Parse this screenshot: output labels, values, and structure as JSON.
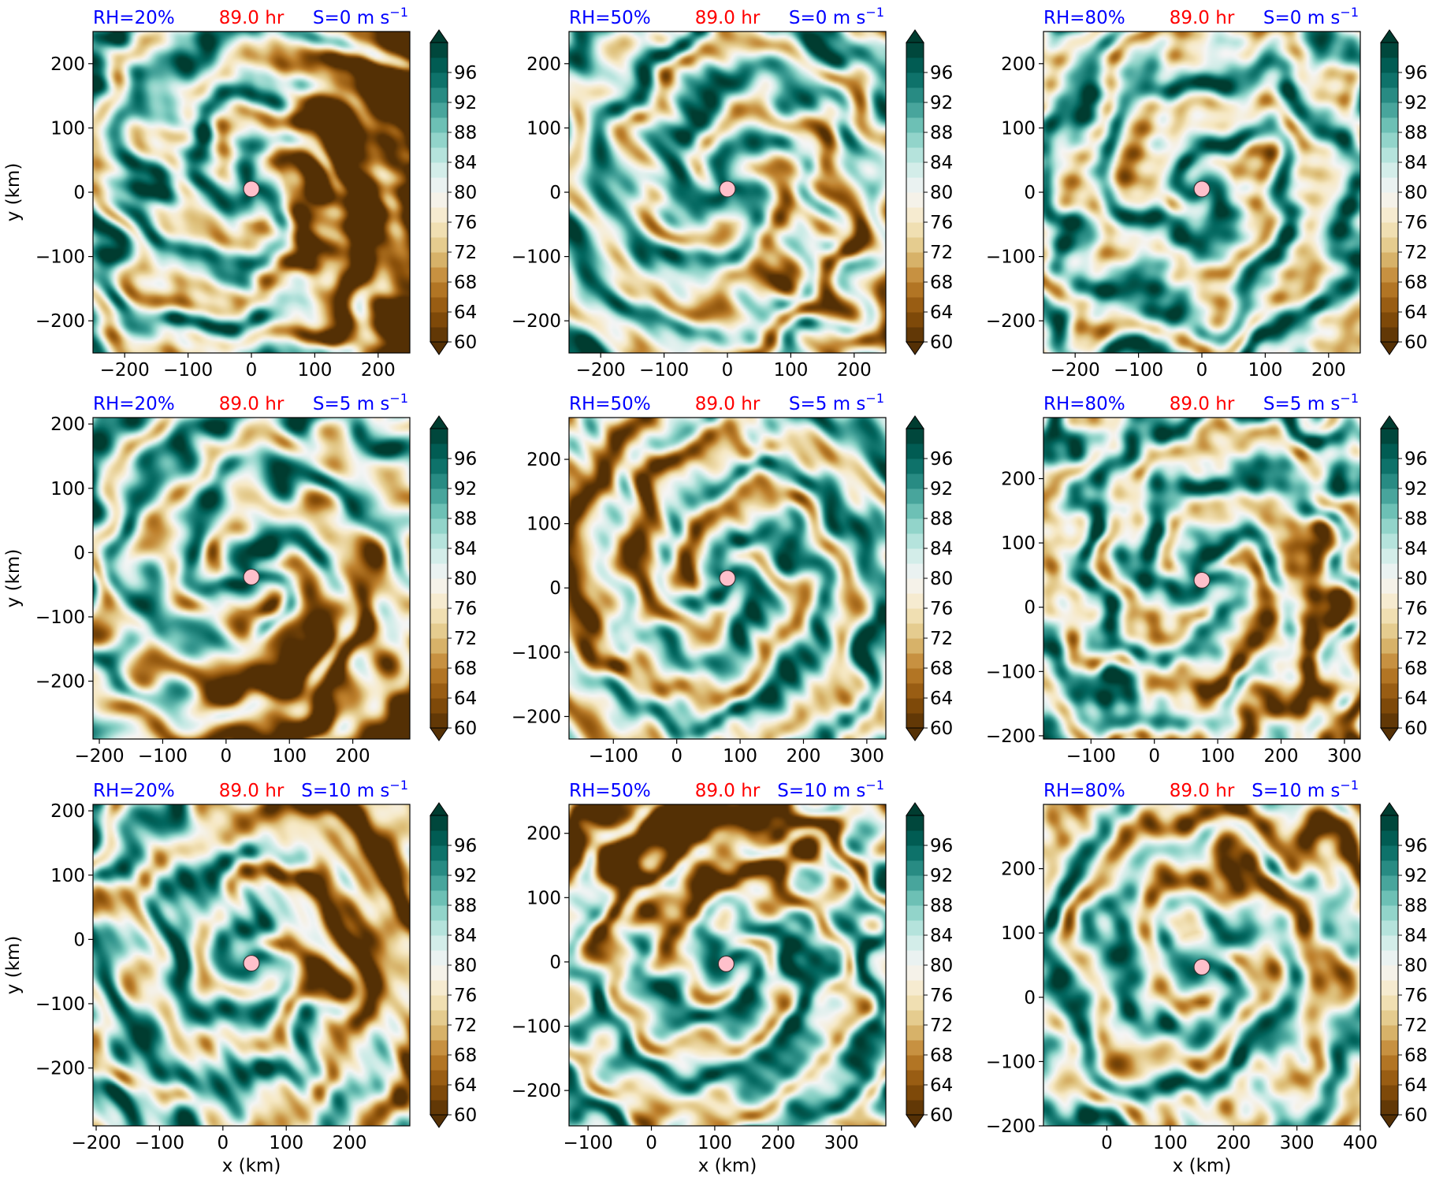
{
  "figure": {
    "colors": {
      "title_left": "#0000ff",
      "title_center": "#ff0000",
      "title_right": "#0000ff",
      "center_marker": "#ffc0cb",
      "colormap": [
        "#543005",
        "#8c510a",
        "#bf812d",
        "#dfc27d",
        "#f6e8c3",
        "#f5f5f5",
        "#c7eae5",
        "#80cdc1",
        "#35978f",
        "#01665e",
        "#003c30"
      ]
    },
    "colorbar": {
      "ticks": [
        "60",
        "64",
        "68",
        "72",
        "76",
        "80",
        "84",
        "88",
        "92",
        "96"
      ],
      "levels": [
        60,
        62,
        64,
        66,
        68,
        70,
        72,
        74,
        76,
        78,
        80,
        82,
        84,
        86,
        88,
        90,
        92,
        94,
        96,
        98,
        100
      ],
      "extend": "both"
    }
  },
  "chart_data": [
    {
      "type": "heatmap",
      "panel": "RH=20%, S=0",
      "title_left": "RH=20%",
      "title_center": "89.0 hr",
      "title_right_main": "S=0 m s",
      "title_right_sup": "−1",
      "xlabel": "",
      "ylabel": "y (km)",
      "xlim": [
        -250,
        250
      ],
      "ylim": [
        -250,
        250
      ],
      "xticks": [
        -200,
        -100,
        0,
        100,
        200
      ],
      "yticks": [
        -200,
        -100,
        0,
        100,
        200
      ],
      "xtick_labels": [
        "−200",
        "−100",
        "0",
        "100",
        "200"
      ],
      "ytick_labels": [
        "−200",
        "−100",
        "0",
        "100",
        "200"
      ],
      "center": [
        0,
        5
      ],
      "dry_direction_deg": 0,
      "dry_strength": 0.8,
      "arms": 3,
      "value_range": [
        60,
        100
      ]
    },
    {
      "type": "heatmap",
      "panel": "RH=50%, S=0",
      "title_left": "RH=50%",
      "title_center": "89.0 hr",
      "title_right_main": "S=0 m s",
      "title_right_sup": "−1",
      "xlabel": "",
      "ylabel": "",
      "xlim": [
        -250,
        250
      ],
      "ylim": [
        -250,
        250
      ],
      "xticks": [
        -200,
        -100,
        0,
        100,
        200
      ],
      "yticks": [
        -200,
        -100,
        0,
        100,
        200
      ],
      "xtick_labels": [
        "−200",
        "−100",
        "0",
        "100",
        "200"
      ],
      "ytick_labels": [
        "−200",
        "−100",
        "0",
        "100",
        "200"
      ],
      "center": [
        0,
        5
      ],
      "dry_direction_deg": 330,
      "dry_strength": 0.3,
      "arms": 3,
      "value_range": [
        60,
        100
      ]
    },
    {
      "type": "heatmap",
      "panel": "RH=80%, S=0",
      "title_left": "RH=80%",
      "title_center": "89.0 hr",
      "title_right_main": "S=0 m s",
      "title_right_sup": "−1",
      "xlabel": "",
      "ylabel": "",
      "xlim": [
        -250,
        250
      ],
      "ylim": [
        -250,
        250
      ],
      "xticks": [
        -200,
        -100,
        0,
        100,
        200
      ],
      "yticks": [
        -200,
        -100,
        0,
        100,
        200
      ],
      "xtick_labels": [
        "−200",
        "−100",
        "0",
        "100",
        "200"
      ],
      "ytick_labels": [
        "−200",
        "−100",
        "0",
        "100",
        "200"
      ],
      "center": [
        0,
        5
      ],
      "dry_direction_deg": 0,
      "dry_strength": 0.0,
      "arms": 2,
      "value_range": [
        60,
        100
      ]
    },
    {
      "type": "heatmap",
      "panel": "RH=20%, S=5",
      "title_left": "RH=20%",
      "title_center": "89.0 hr",
      "title_right_main": "S=5 m s",
      "title_right_sup": "−1",
      "xlabel": "",
      "ylabel": "y (km)",
      "xlim": [
        -210,
        290
      ],
      "ylim": [
        -290,
        210
      ],
      "xticks": [
        -200,
        -100,
        0,
        100,
        200
      ],
      "yticks": [
        -200,
        -100,
        0,
        100,
        200
      ],
      "xtick_labels": [
        "−200",
        "−100",
        "0",
        "100",
        "200"
      ],
      "ytick_labels": [
        "−200",
        "−100",
        "0",
        "100",
        "200"
      ],
      "center": [
        40,
        -38
      ],
      "dry_direction_deg": 300,
      "dry_strength": 0.55,
      "arms": 3,
      "value_range": [
        60,
        100
      ]
    },
    {
      "type": "heatmap",
      "panel": "RH=50%, S=5",
      "title_left": "RH=50%",
      "title_center": "89.0 hr",
      "title_right_main": "S=5 m s",
      "title_right_sup": "−1",
      "xlabel": "",
      "ylabel": "",
      "xlim": [
        -170,
        330
      ],
      "ylim": [
        -235,
        265
      ],
      "xticks": [
        -100,
        0,
        100,
        200,
        300
      ],
      "yticks": [
        -200,
        -100,
        0,
        100,
        200
      ],
      "xtick_labels": [
        "−100",
        "0",
        "100",
        "200",
        "300"
      ],
      "ytick_labels": [
        "−200",
        "−100",
        "0",
        "100",
        "200"
      ],
      "center": [
        80,
        15
      ],
      "dry_direction_deg": 160,
      "dry_strength": 0.35,
      "arms": 3,
      "value_range": [
        60,
        100
      ]
    },
    {
      "type": "heatmap",
      "panel": "RH=80%, S=5",
      "title_left": "RH=80%",
      "title_center": "89.0 hr",
      "title_right_main": "S=5 m s",
      "title_right_sup": "−1",
      "xlabel": "",
      "ylabel": "",
      "xlim": [
        -175,
        325
      ],
      "ylim": [
        -205,
        295
      ],
      "xticks": [
        -100,
        0,
        100,
        200,
        300
      ],
      "yticks": [
        -200,
        -100,
        0,
        100,
        200
      ],
      "xtick_labels": [
        "−100",
        "0",
        "100",
        "200",
        "300"
      ],
      "ytick_labels": [
        "−200",
        "−100",
        "0",
        "100",
        "200"
      ],
      "center": [
        75,
        42
      ],
      "dry_direction_deg": 320,
      "dry_strength": 0.35,
      "arms": 3,
      "value_range": [
        60,
        100
      ]
    },
    {
      "type": "heatmap",
      "panel": "RH=20%, S=10",
      "title_left": "RH=20%",
      "title_center": "89.0 hr",
      "title_right_main": "S=10 m s",
      "title_right_sup": "−1",
      "xlabel": "x (km)",
      "ylabel": "y (km)",
      "xlim": [
        -205,
        295
      ],
      "ylim": [
        -290,
        210
      ],
      "xticks": [
        -200,
        -100,
        0,
        100,
        200
      ],
      "yticks": [
        -200,
        -100,
        0,
        100,
        200
      ],
      "xtick_labels": [
        "−200",
        "−100",
        "0",
        "100",
        "200"
      ],
      "ytick_labels": [
        "−200",
        "−100",
        "0",
        "100",
        "200"
      ],
      "center": [
        45,
        -37
      ],
      "dry_direction_deg": 20,
      "dry_strength": 0.55,
      "arms": 2,
      "value_range": [
        60,
        100
      ]
    },
    {
      "type": "heatmap",
      "panel": "RH=50%, S=10",
      "title_left": "RH=50%",
      "title_center": "89.0 hr",
      "title_right_main": "S=10 m s",
      "title_right_sup": "−1",
      "xlabel": "x (km)",
      "ylabel": "",
      "xlim": [
        -130,
        370
      ],
      "ylim": [
        -255,
        245
      ],
      "xticks": [
        -100,
        0,
        100,
        200,
        300
      ],
      "yticks": [
        -200,
        -100,
        0,
        100,
        200
      ],
      "xtick_labels": [
        "−100",
        "0",
        "100",
        "200",
        "300"
      ],
      "ytick_labels": [
        "−200",
        "−100",
        "0",
        "100",
        "200"
      ],
      "center": [
        118,
        -3
      ],
      "dry_direction_deg": 100,
      "dry_strength": 0.55,
      "arms": 2,
      "value_range": [
        60,
        100
      ]
    },
    {
      "type": "heatmap",
      "panel": "RH=80%, S=10",
      "title_left": "RH=80%",
      "title_center": "89.0 hr",
      "title_right_main": "S=10 m s",
      "title_right_sup": "−1",
      "xlabel": "x (km)",
      "ylabel": "",
      "xlim": [
        -100,
        400
      ],
      "ylim": [
        -200,
        300
      ],
      "xticks": [
        0,
        100,
        200,
        300,
        400
      ],
      "yticks": [
        -200,
        -100,
        0,
        100,
        200
      ],
      "xtick_labels": [
        "0",
        "100",
        "200",
        "300",
        "400"
      ],
      "ytick_labels": [
        "−200",
        "−100",
        "0",
        "100",
        "200"
      ],
      "center": [
        150,
        47
      ],
      "dry_direction_deg": 60,
      "dry_strength": 0.3,
      "arms": 2,
      "value_range": [
        60,
        100
      ]
    }
  ]
}
